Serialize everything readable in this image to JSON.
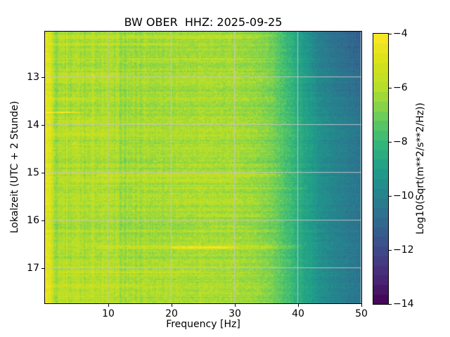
{
  "chart_data": {
    "type": "heatmap",
    "title": "BW OBER  HHZ: 2025-09-25",
    "xlabel": "Frequency [Hz]",
    "ylabel": "Lokalzeit (UTC + 2 Stunde)",
    "x_range_hz": [
      0,
      50
    ],
    "y_range_hours": [
      12.04,
      17.73
    ],
    "x_ticks": [
      10,
      20,
      30,
      40,
      50
    ],
    "y_ticks": [
      13,
      14,
      15,
      16,
      17
    ],
    "grid": true,
    "grid_color": "#c6c6c6",
    "colorbar": {
      "label": "Log10(Sqrt(m**2/s**2/Hz))",
      "ticks": [
        -4,
        -6,
        -8,
        -10,
        -12,
        -14
      ],
      "vmin": -14,
      "vmax": -4,
      "levels": 28
    },
    "colormap": {
      "name": "viridis",
      "stops": [
        "#440154",
        "#482878",
        "#3e4989",
        "#31688e",
        "#26828e",
        "#1f9e89",
        "#35b779",
        "#6ece58",
        "#b5de2b",
        "#d8e219",
        "#fde725"
      ]
    },
    "spectrum_profile": [
      [
        0,
        -4.85
      ],
      [
        0.8,
        -5.05
      ],
      [
        1.1,
        -5.8
      ],
      [
        1.7,
        -6.3
      ],
      [
        3,
        -6.3
      ],
      [
        5,
        -6.18
      ],
      [
        9,
        -6.22
      ],
      [
        13,
        -6.32
      ],
      [
        19,
        -6.28
      ],
      [
        25,
        -6.18
      ],
      [
        30,
        -6.28
      ],
      [
        33,
        -6.45
      ],
      [
        35.5,
        -6.8
      ],
      [
        37.5,
        -7.45
      ],
      [
        39.5,
        -8.15
      ],
      [
        41.5,
        -8.85
      ],
      [
        43.5,
        -9.5
      ],
      [
        45.5,
        -9.95
      ],
      [
        47.5,
        -10.25
      ],
      [
        50,
        -10.55
      ]
    ],
    "top_right_darkening": {
      "amp": -0.75,
      "t_end": 13.9,
      "t_span": 1.9,
      "f_start": 35,
      "f_span": 8
    },
    "bottom_brighten": {
      "amp": 0.12,
      "t_start": 16.9,
      "f_max": 22
    },
    "bright_columns": [
      {
        "f": 0.4,
        "amp": 0.5,
        "w": 0.5
      },
      {
        "f": 3.4,
        "amp": 0.45,
        "w": 0.35
      },
      {
        "f": 5.2,
        "amp": 0.25,
        "w": 0.35
      },
      {
        "f": 8.0,
        "amp": 0.35,
        "w": 0.5
      },
      {
        "f": 10.0,
        "amp": 0.2,
        "w": 0.4
      },
      {
        "f": 16.0,
        "amp": 0.15,
        "w": 0.5
      }
    ],
    "time_streaks": [
      {
        "t": 12.17,
        "f1": 1,
        "f2": 35,
        "amp": 0.5
      },
      {
        "t": 12.3,
        "f1": 1,
        "f2": 22,
        "amp": 0.45
      },
      {
        "t": 12.62,
        "f1": 13,
        "f2": 33,
        "amp": 0.35
      },
      {
        "t": 12.95,
        "f1": 2,
        "f2": 14,
        "amp": 0.4
      },
      {
        "t": 13.15,
        "f1": 8,
        "f2": 38,
        "amp": 0.35
      },
      {
        "t": 13.45,
        "f1": 1,
        "f2": 8,
        "amp": 0.4
      },
      {
        "t": 13.73,
        "f1": 0,
        "f2": 6.5,
        "amp": 1.9,
        "h": 0.05
      },
      {
        "t": 13.92,
        "f1": 2,
        "f2": 9,
        "amp": 0.4
      },
      {
        "t": 14.18,
        "f1": 1,
        "f2": 11,
        "amp": 0.55
      },
      {
        "t": 14.4,
        "f1": 4,
        "f2": 9,
        "amp": 0.35
      },
      {
        "t": 14.75,
        "f1": 17,
        "f2": 33,
        "amp": 0.3
      },
      {
        "t": 15.05,
        "f1": 8,
        "f2": 39,
        "amp": 0.6
      },
      {
        "t": 15.15,
        "f1": 4,
        "f2": 31,
        "amp": 0.5
      },
      {
        "t": 15.32,
        "f1": 14,
        "f2": 43,
        "amp": 0.45
      },
      {
        "t": 15.6,
        "f1": 19,
        "f2": 35,
        "amp": 0.3
      },
      {
        "t": 15.9,
        "f1": 24,
        "f2": 36,
        "amp": 0.4
      },
      {
        "t": 16.12,
        "f1": 26,
        "f2": 35,
        "amp": 0.45
      },
      {
        "t": 16.55,
        "f1": 8,
        "f2": 41.5,
        "amp": 0.65,
        "h": 0.07
      },
      {
        "t": 16.56,
        "f1": 20,
        "f2": 31,
        "amp": 1.6,
        "h": 0.05
      },
      {
        "t": 17.08,
        "f1": 2,
        "f2": 26,
        "amp": 0.45
      },
      {
        "t": 17.35,
        "f1": 1,
        "f2": 16,
        "amp": 0.4
      },
      {
        "t": 17.6,
        "f1": 2,
        "f2": 12,
        "amp": 0.35
      }
    ],
    "noise": {
      "seed": 7,
      "cell": 0.5,
      "row": 0.28,
      "column": 0.3,
      "speckle_prob": 0.02,
      "speckle_amp": 0.55
    }
  }
}
